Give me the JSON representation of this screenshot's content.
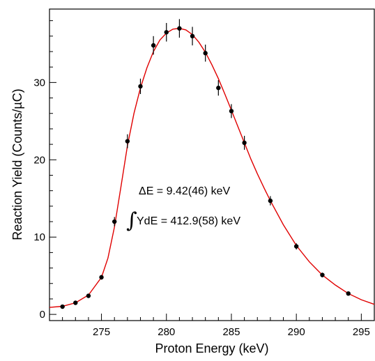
{
  "chart_data": {
    "type": "scatter",
    "title": "",
    "xlabel": "Proton Energy (keV)",
    "ylabel": "Reaction Yield (Counts/µC)",
    "xlim": [
      271,
      296
    ],
    "ylim": [
      -0.8,
      39.5
    ],
    "x_ticks": [
      275,
      280,
      285,
      290,
      295
    ],
    "y_ticks": [
      0,
      10,
      20,
      30
    ],
    "grid": false,
    "legend": "none",
    "series": [
      {
        "kind": "data_points",
        "color": "#000000",
        "points": [
          {
            "x": 272,
            "y": 1.0,
            "err": 0.15
          },
          {
            "x": 273,
            "y": 1.5,
            "err": 0.15
          },
          {
            "x": 274,
            "y": 2.4,
            "err": 0.2
          },
          {
            "x": 275,
            "y": 4.8,
            "err": 0.3
          },
          {
            "x": 276,
            "y": 12.0,
            "err": 0.6
          },
          {
            "x": 277,
            "y": 22.4,
            "err": 0.9
          },
          {
            "x": 278,
            "y": 29.5,
            "err": 1.0
          },
          {
            "x": 279,
            "y": 34.8,
            "err": 1.2
          },
          {
            "x": 280,
            "y": 36.5,
            "err": 1.2
          },
          {
            "x": 281,
            "y": 37.0,
            "err": 1.2
          },
          {
            "x": 282,
            "y": 36.0,
            "err": 1.2
          },
          {
            "x": 283,
            "y": 33.8,
            "err": 1.1
          },
          {
            "x": 284,
            "y": 29.3,
            "err": 1.0
          },
          {
            "x": 285,
            "y": 26.3,
            "err": 0.9
          },
          {
            "x": 286,
            "y": 22.2,
            "err": 0.9
          },
          {
            "x": 288,
            "y": 14.7,
            "err": 0.6
          },
          {
            "x": 290,
            "y": 8.8,
            "err": 0.4
          },
          {
            "x": 292,
            "y": 5.1,
            "err": 0.3
          },
          {
            "x": 294,
            "y": 2.7,
            "err": 0.2
          }
        ]
      },
      {
        "kind": "fit_curve",
        "color": "#e00000",
        "points": [
          [
            271,
            0.9
          ],
          [
            272,
            1.05
          ],
          [
            273,
            1.5
          ],
          [
            274,
            2.5
          ],
          [
            275,
            4.8
          ],
          [
            275.5,
            7.3
          ],
          [
            276,
            11.3
          ],
          [
            276.5,
            16.5
          ],
          [
            277,
            21.8
          ],
          [
            277.5,
            26.0
          ],
          [
            278,
            29.3
          ],
          [
            278.5,
            31.9
          ],
          [
            279,
            34.0
          ],
          [
            279.5,
            35.5
          ],
          [
            280,
            36.4
          ],
          [
            280.5,
            36.9
          ],
          [
            281,
            37.0
          ],
          [
            281.5,
            36.8
          ],
          [
            282,
            36.2
          ],
          [
            282.5,
            35.2
          ],
          [
            283,
            33.9
          ],
          [
            283.5,
            32.3
          ],
          [
            284,
            30.5
          ],
          [
            284.5,
            28.5
          ],
          [
            285,
            26.4
          ],
          [
            285.5,
            24.3
          ],
          [
            286,
            22.2
          ],
          [
            286.5,
            20.1
          ],
          [
            287,
            18.2
          ],
          [
            287.5,
            16.4
          ],
          [
            288,
            14.7
          ],
          [
            289,
            11.6
          ],
          [
            290,
            8.9
          ],
          [
            291,
            6.8
          ],
          [
            292,
            5.1
          ],
          [
            293,
            3.8
          ],
          [
            294,
            2.7
          ],
          [
            295,
            1.9
          ],
          [
            296,
            1.3
          ]
        ]
      }
    ],
    "annotations": [
      {
        "text": "ΔE = 9.42(46) keV"
      },
      {
        "text": "YdE = 412.9(58) keV",
        "prefix_symbol": "∫"
      }
    ]
  }
}
